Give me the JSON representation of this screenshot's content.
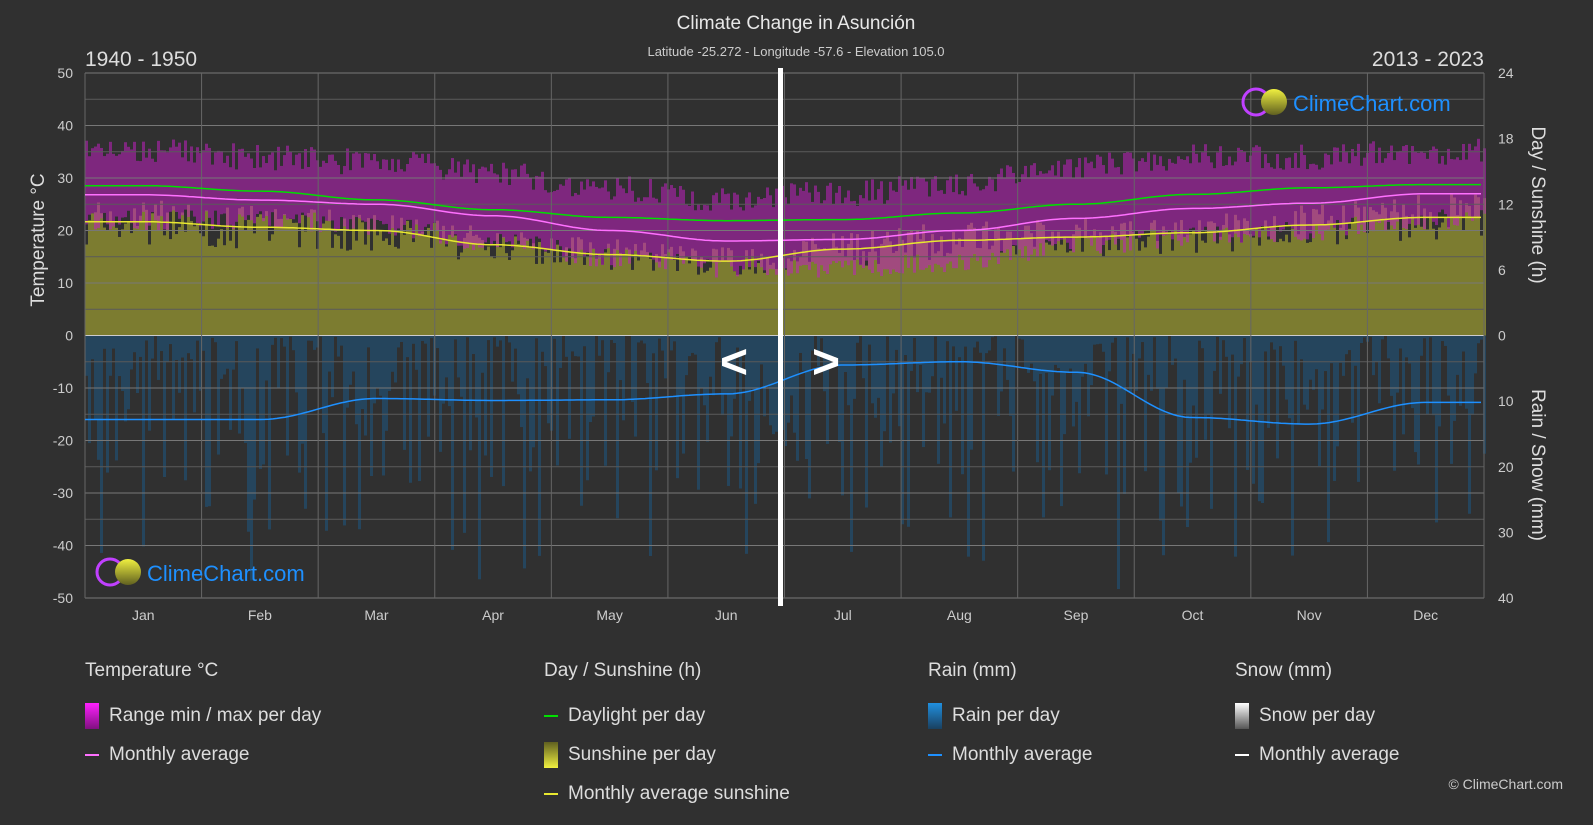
{
  "chart_data": {
    "type": "line",
    "title": "Climate Change in Asunción",
    "subtitle": "Latitude -25.272 - Longitude -57.6 - Elevation 105.0",
    "period_left": "1940 - 1950",
    "period_right": "2013 - 2023",
    "categories": [
      "Jan",
      "Feb",
      "Mar",
      "Apr",
      "May",
      "Jun",
      "Jul",
      "Aug",
      "Sep",
      "Oct",
      "Nov",
      "Dec"
    ],
    "y_left": {
      "label": "Temperature °C",
      "range": [
        -50,
        50
      ],
      "ticks": [
        50,
        40,
        30,
        20,
        10,
        0,
        -10,
        -20,
        -30,
        -40,
        -50
      ]
    },
    "y_right_top": {
      "label": "Day / Sunshine (h)",
      "range": [
        0,
        24
      ],
      "ticks": [
        24,
        18,
        12,
        6,
        0
      ]
    },
    "y_right_bottom": {
      "label": "Rain / Snow (mm)",
      "range": [
        0,
        40
      ],
      "ticks": [
        0,
        10,
        20,
        30,
        40
      ]
    },
    "grid": true,
    "series": [
      {
        "name": "Monthly average",
        "group": "temperature",
        "color": "#ff70ff",
        "values": [
          26.8,
          25.8,
          25.0,
          22.8,
          20.0,
          18.0,
          18.3,
          20.0,
          22.3,
          24.2,
          25.2,
          27.0
        ]
      },
      {
        "name": "Daylight per day",
        "group": "sunshine",
        "color": "#00e000",
        "values": [
          13.7,
          13.2,
          12.4,
          11.5,
          10.8,
          10.5,
          10.6,
          11.2,
          12.0,
          12.9,
          13.5,
          13.8
        ]
      },
      {
        "name": "Monthly average sunshine",
        "group": "sunshine",
        "color": "#e8e830",
        "values": [
          10.4,
          9.9,
          9.6,
          8.3,
          7.4,
          6.8,
          7.9,
          8.7,
          9.0,
          9.4,
          10.1,
          10.8
        ]
      },
      {
        "name": "Monthly average",
        "group": "rain",
        "color": "#1e90ff",
        "values": [
          12.8,
          12.8,
          9.6,
          9.9,
          9.8,
          8.9,
          4.5,
          4.0,
          5.6,
          12.5,
          13.5,
          10.2
        ]
      }
    ],
    "temp_range_max": [
      34,
      33,
      32,
      30,
      27,
      25,
      26,
      28,
      31,
      33,
      33,
      34
    ],
    "temp_range_min": [
      22,
      22,
      21,
      18,
      15,
      13,
      13,
      14,
      17,
      19,
      20,
      22
    ],
    "nav": {
      "prev": "<",
      "next": ">"
    }
  },
  "logo_text": "ClimeChart.com",
  "copyright": "© ClimeChart.com",
  "legend": {
    "temperature": {
      "title": "Temperature °C",
      "items": [
        "Range min / max per day",
        "Monthly average"
      ]
    },
    "sunshine": {
      "title": "Day / Sunshine (h)",
      "items": [
        "Daylight per day",
        "Sunshine per day",
        "Monthly average sunshine"
      ]
    },
    "rain": {
      "title": "Rain (mm)",
      "items": [
        "Rain per day",
        "Monthly average"
      ]
    },
    "snow": {
      "title": "Snow (mm)",
      "items": [
        "Snow per day",
        "Monthly average"
      ]
    }
  },
  "colors": {
    "background": "#303030",
    "temp_range": "#c020c0",
    "sunshine_fill": "#9a9a30",
    "rain_fill": "#1a5a8a",
    "logo": "#1e90ff"
  }
}
